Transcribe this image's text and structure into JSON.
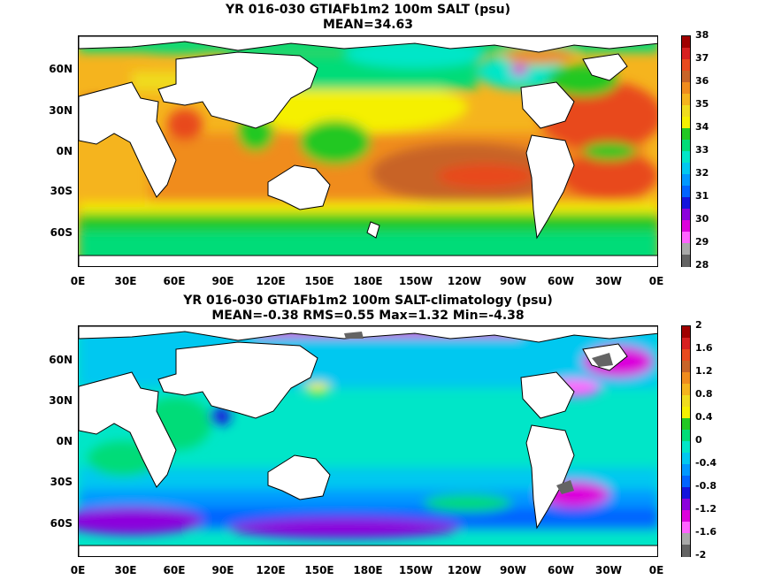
{
  "panels": [
    {
      "title_line1": "YR 016-030 GTIAFb1m2 100m SALT (psu)",
      "title_line2": "MEAN=34.63",
      "y_ticks": [
        "60N",
        "30N",
        "0N",
        "30S",
        "60S"
      ],
      "x_ticks": [
        "0E",
        "30E",
        "60E",
        "90E",
        "120E",
        "150E",
        "180E",
        "150W",
        "120W",
        "90W",
        "60W",
        "30W",
        "0E"
      ],
      "colorbar_labels": [
        "38",
        "37",
        "36",
        "35",
        "34",
        "33",
        "32",
        "31",
        "30",
        "29",
        "28"
      ],
      "colorbar_colors": [
        "#a00000",
        "#d82020",
        "#e84a1e",
        "#c86428",
        "#f08c1e",
        "#f5b41e",
        "#f0dc1e",
        "#f5f000",
        "#22c822",
        "#00dc78",
        "#00e6c8",
        "#00c8f0",
        "#0098ff",
        "#0064ff",
        "#1414dc",
        "#8c00dc",
        "#dc00dc",
        "#ff64ff",
        "#aaaaaa",
        "#646464"
      ]
    },
    {
      "title_line1": "YR 016-030 GTIAFb1m2 100m SALT-climatology (psu)",
      "title_line2": "MEAN=-0.38   RMS=0.55   Max=1.32   Min=-4.38",
      "y_ticks": [
        "60N",
        "30N",
        "0N",
        "30S",
        "60S"
      ],
      "x_ticks": [
        "0E",
        "30E",
        "60E",
        "90E",
        "120E",
        "150E",
        "180E",
        "150W",
        "120W",
        "90W",
        "60W",
        "30W",
        "0E"
      ],
      "colorbar_labels": [
        "2",
        "1.6",
        "1.2",
        "0.8",
        "0.4",
        "0",
        "-0.4",
        "-0.8",
        "-1.2",
        "-1.6",
        "-2"
      ],
      "colorbar_colors": [
        "#a00000",
        "#d82020",
        "#e84a1e",
        "#c86428",
        "#f08c1e",
        "#f5b41e",
        "#f0dc1e",
        "#f5f000",
        "#22c822",
        "#00dc78",
        "#00e6c8",
        "#00c8f0",
        "#0098ff",
        "#0064ff",
        "#1414dc",
        "#8c00dc",
        "#dc00dc",
        "#ff64ff",
        "#aaaaaa",
        "#646464"
      ]
    }
  ]
}
